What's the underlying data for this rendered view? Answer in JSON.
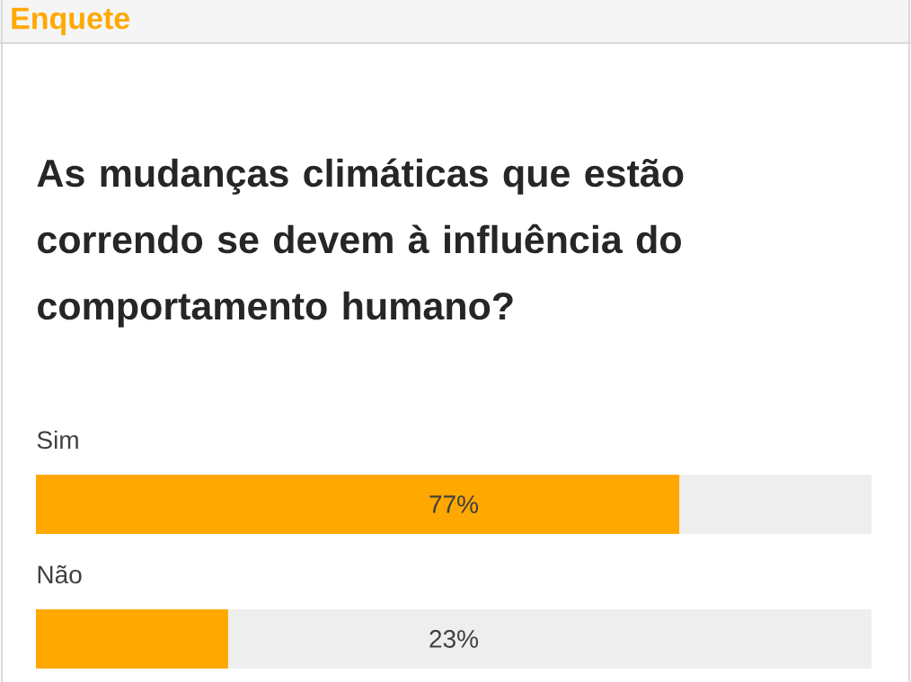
{
  "chart_data": {
    "type": "bar",
    "orientation": "horizontal",
    "title": "Enquete",
    "subtitle": "As mudanças climáticas que estão correndo se devem à influência do comportamento humano?",
    "categories": [
      "Sim",
      "Não"
    ],
    "values": [
      77,
      23
    ],
    "value_labels": [
      "77%",
      "23%"
    ],
    "color": "#ffa800",
    "xlim": [
      0,
      100
    ]
  }
}
